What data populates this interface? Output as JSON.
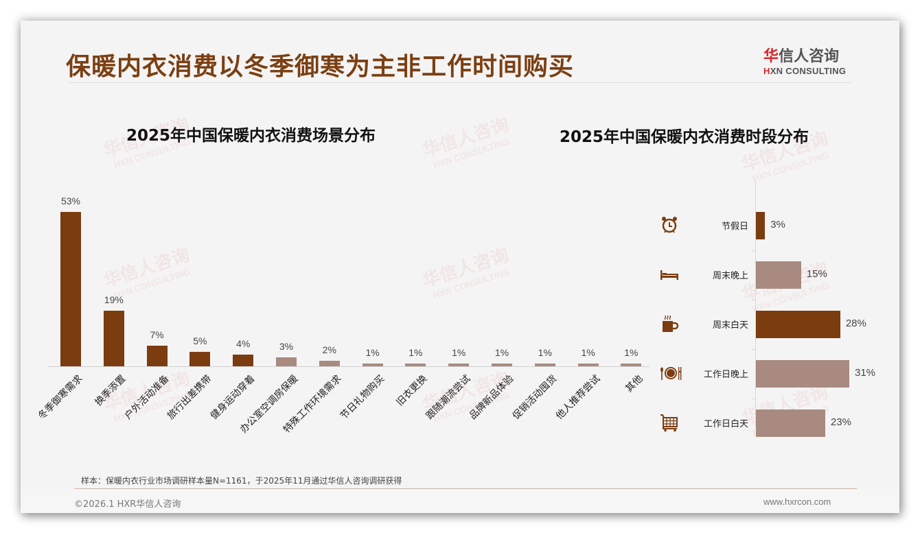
{
  "header": {
    "title": "保暖内衣消费以冬季御寒为主非工作时间购买",
    "logo_cn_first": "华",
    "logo_cn_rest": "信人咨询",
    "logo_en_first": "H",
    "logo_en_rest": "XN CONSULTING"
  },
  "watermark": {
    "cn": "华信人咨询",
    "en": "HXN CONSULTING"
  },
  "colors": {
    "primary": "#7b3c10",
    "secondary": "#a88a80",
    "title": "#7b3f12",
    "logo_red": "#d8262c"
  },
  "chart_data": [
    {
      "type": "bar",
      "title": "2025年中国保暖内衣消费场景分布",
      "xlabel": "",
      "ylabel": "",
      "categories": [
        "冬季御寒需求",
        "换季添置",
        "户外活动准备",
        "旅行出差携带",
        "健身运动穿着",
        "办公室空调房保暖",
        "特殊工作环境需求",
        "节日礼物购买",
        "旧衣更换",
        "跟随潮流尝试",
        "品牌新品体验",
        "促销活动囤货",
        "他人推荐尝试",
        "其他"
      ],
      "values": [
        53,
        19,
        7,
        5,
        4,
        3,
        2,
        1,
        1,
        1,
        1,
        1,
        1,
        1
      ],
      "labels": [
        "53%",
        "19%",
        "7%",
        "5%",
        "4%",
        "3%",
        "2%",
        "1%",
        "1%",
        "1%",
        "1%",
        "1%",
        "1%",
        "1%"
      ],
      "highlight": [
        true,
        true,
        true,
        true,
        true,
        false,
        false,
        false,
        false,
        false,
        false,
        false,
        false,
        false
      ],
      "unit": "%",
      "ylim": [
        0,
        55
      ],
      "grid": false,
      "legend": "none"
    },
    {
      "type": "bar",
      "orientation": "horizontal",
      "title": "2025年中国保暖内衣消费时段分布",
      "xlabel": "",
      "ylabel": "",
      "categories": [
        "节假日",
        "周末晚上",
        "周末白天",
        "工作日晚上",
        "工作日白天"
      ],
      "values": [
        3,
        15,
        28,
        31,
        23
      ],
      "labels": [
        "3%",
        "15%",
        "28%",
        "31%",
        "23%"
      ],
      "icons": [
        "alarm-clock-icon",
        "bed-icon",
        "coffee-cup-icon",
        "plate-cutlery-icon",
        "shopping-cart-icon"
      ],
      "highlight": [
        true,
        false,
        true,
        false,
        false
      ],
      "unit": "%",
      "xlim": [
        0,
        32
      ],
      "grid": false,
      "legend": "none"
    }
  ],
  "footer": {
    "note": "样本：保暖内衣行业市场调研样本量N=1161，于2025年11月通过华信人咨询调研获得",
    "copyright": "©2026.1 HXR华信人咨询",
    "website": "www.hxrcon.com"
  }
}
